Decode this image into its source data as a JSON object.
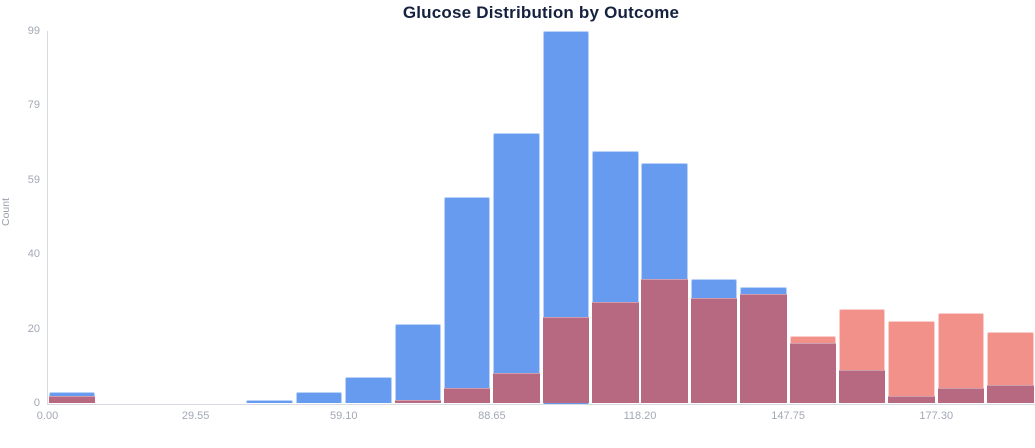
{
  "title": "Glucose Distribution by Outcome",
  "y_axis": {
    "label": "Count",
    "ticks": [
      {
        "value": 0,
        "label": "0"
      },
      {
        "value": 19.8,
        "label": "20"
      },
      {
        "value": 39.6,
        "label": "40"
      },
      {
        "value": 59.4,
        "label": "59"
      },
      {
        "value": 79.2,
        "label": "79"
      },
      {
        "value": 99,
        "label": "99"
      }
    ]
  },
  "x_axis": {
    "ticks": [
      {
        "value": 0,
        "label": "0.00"
      },
      {
        "value": 29.55,
        "label": "29.55"
      },
      {
        "value": 59.1,
        "label": "59.10"
      },
      {
        "value": 88.65,
        "label": "88.65"
      },
      {
        "value": 118.2,
        "label": "118.20"
      },
      {
        "value": 147.75,
        "label": "147.75"
      },
      {
        "value": 177.3,
        "label": "177.30"
      }
    ]
  },
  "colors": {
    "blue_bar": "#679BF0",
    "red_bar": "#F2908A",
    "overlap": "#B66981",
    "axis_line": "#D8DBE2",
    "tick_text": "#A2A8B5",
    "title_text": "#16213E"
  },
  "chart_data": {
    "type": "bar",
    "subtype": "overlaid-histogram",
    "title": "Glucose Distribution by Outcome",
    "xlabel": "",
    "ylabel": "Count",
    "x_range": [
      0,
      197
    ],
    "ylim": [
      0,
      99
    ],
    "bin_width": 9.85,
    "bin_starts": [
      0.0,
      9.85,
      19.7,
      29.55,
      39.4,
      49.25,
      59.1,
      68.95,
      78.8,
      88.65,
      98.5,
      108.35,
      118.2,
      128.05,
      137.9,
      147.75,
      157.6,
      167.45,
      177.3,
      187.15
    ],
    "series": [
      {
        "name": "blue",
        "color": "#679BF0",
        "values": [
          3,
          0,
          0,
          0,
          1,
          3,
          7,
          21,
          55,
          72,
          99,
          67,
          64,
          33,
          31,
          16,
          9,
          2,
          4,
          5
        ]
      },
      {
        "name": "red",
        "color": "#F2908A",
        "values": [
          2,
          0,
          0,
          0,
          0,
          0,
          0,
          1,
          4,
          8,
          23,
          27,
          33,
          28,
          29,
          18,
          25,
          22,
          24,
          19
        ]
      }
    ],
    "overlap_color": "#B66981",
    "grid": false,
    "legend_position": "none"
  }
}
